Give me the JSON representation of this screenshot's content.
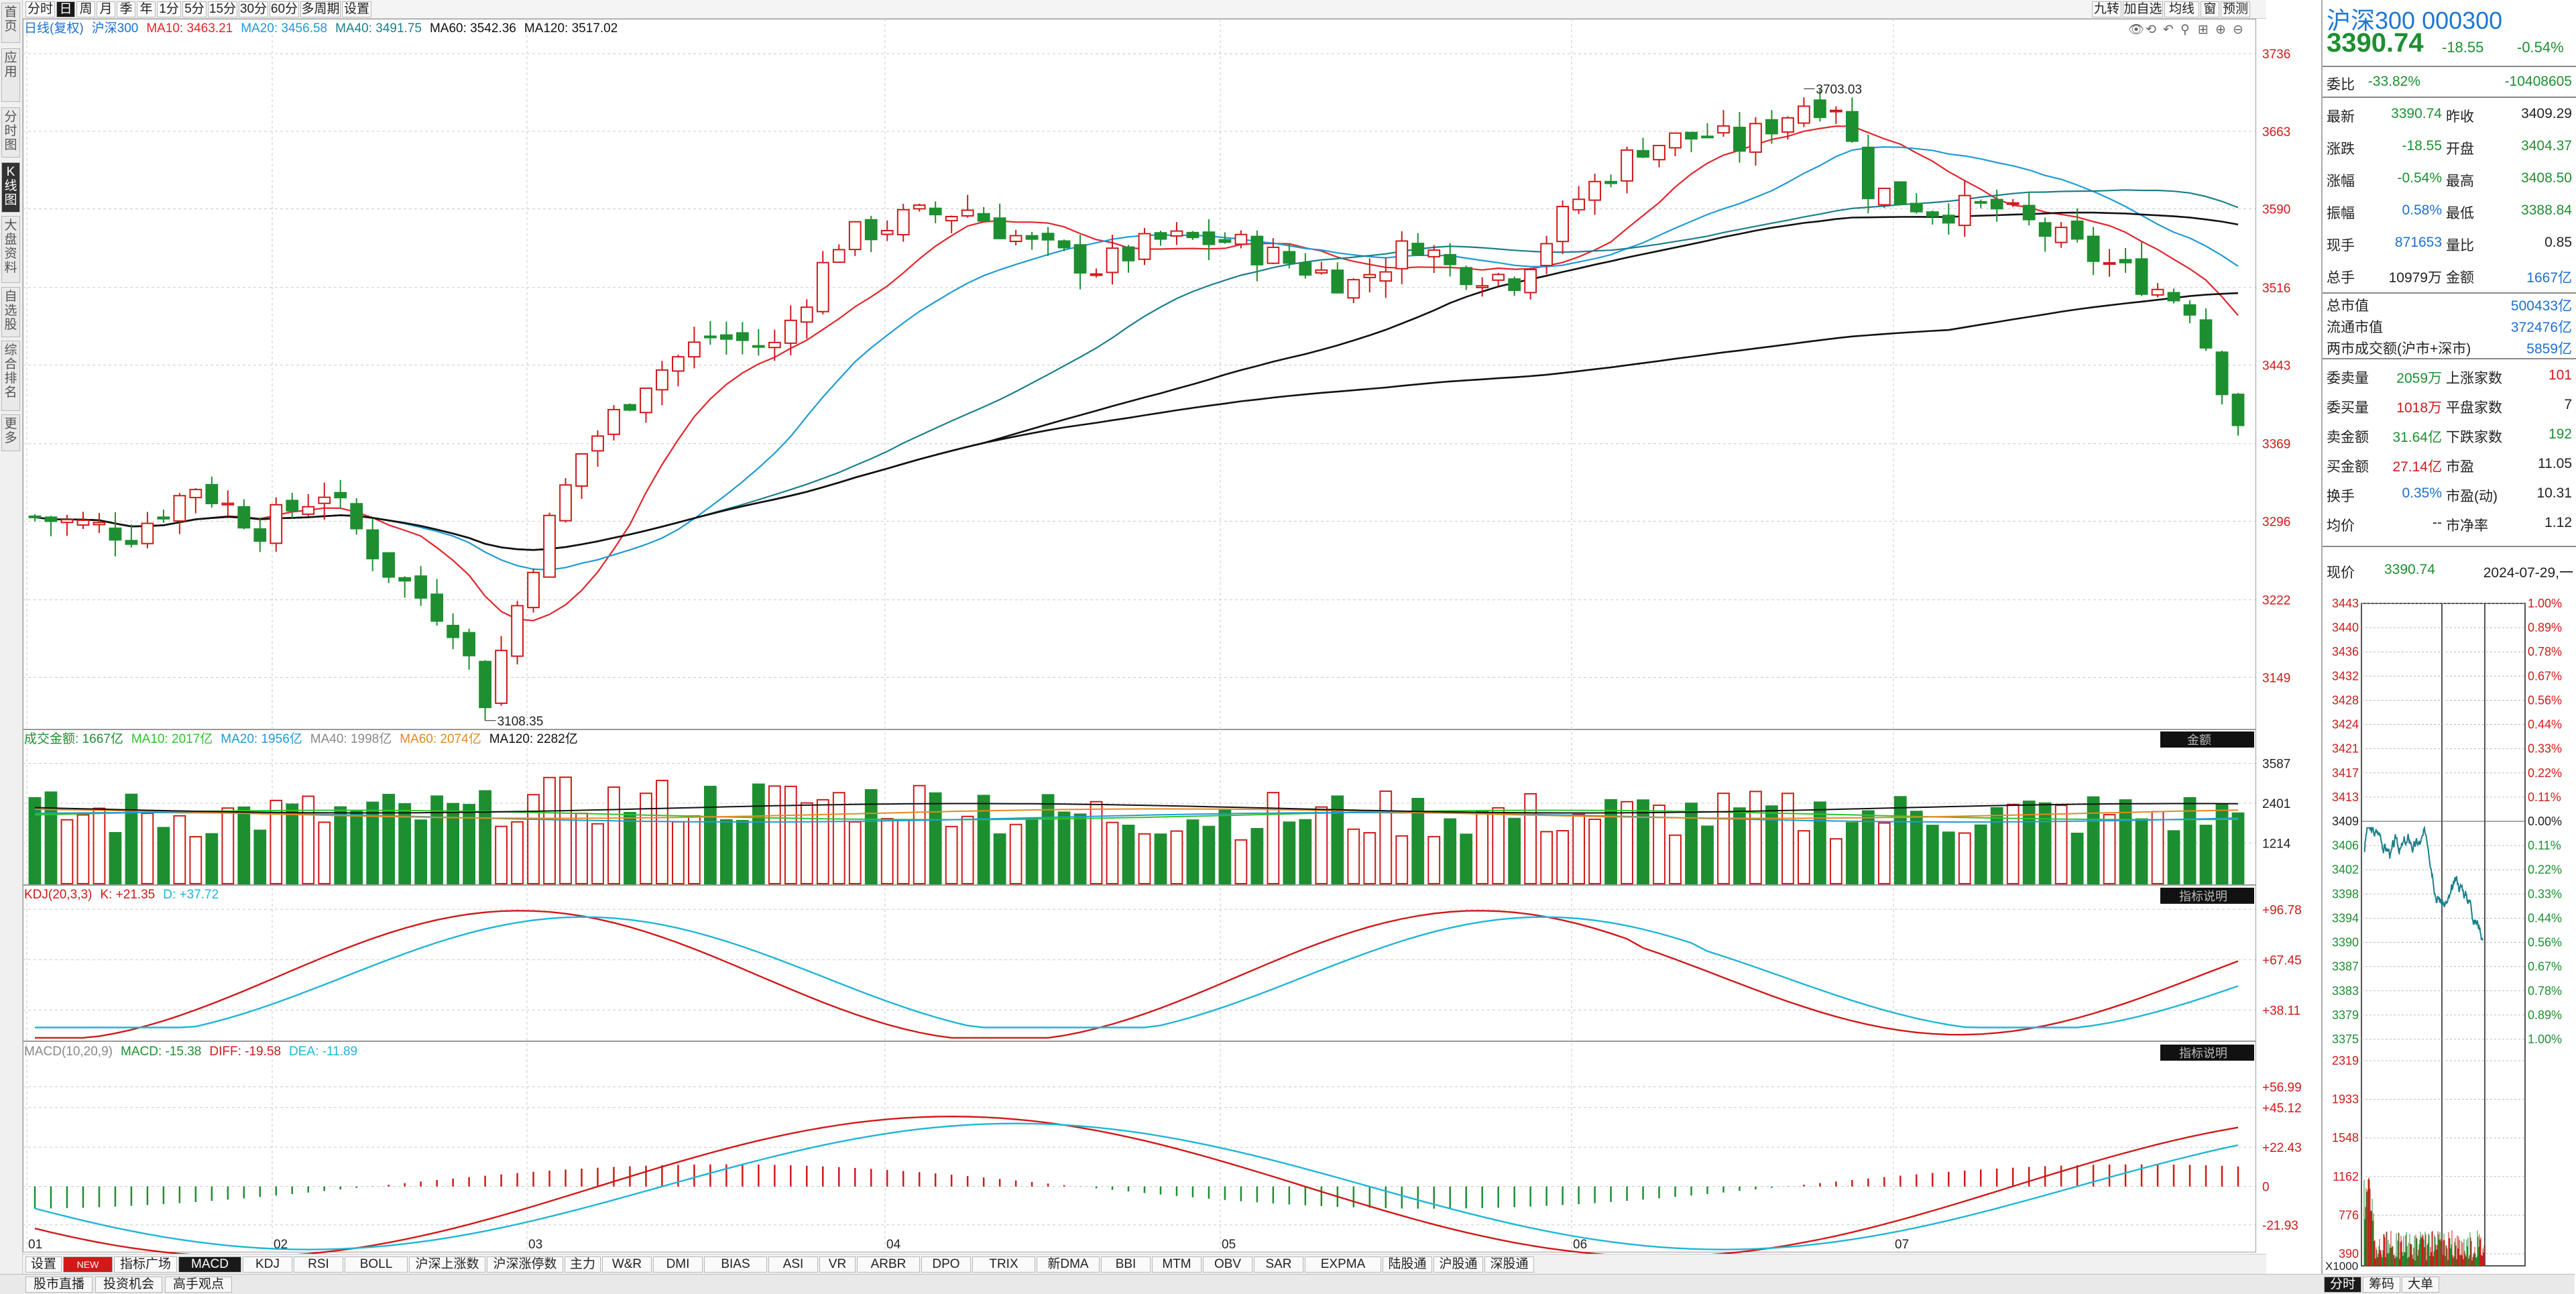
{
  "left_tabs": [
    "首页",
    "应用",
    "分时图",
    "K线图",
    "大盘资料",
    "自选股",
    "综合排名",
    "更多"
  ],
  "toolbar": {
    "items": [
      "分时",
      "日",
      "周",
      "月",
      "季",
      "年",
      "1分",
      "5分",
      "15分",
      "30分",
      "60分",
      "多周期",
      "设置"
    ],
    "right_items": [
      "九转",
      "加自选",
      "均线",
      "窗",
      "预测"
    ],
    "active": "日"
  },
  "price_legend": {
    "prefix": "日线(复权)",
    "name": "沪深300",
    "ma10": "MA10: 3463.21",
    "ma20": "MA20: 3456.58",
    "ma40": "MA40: 3491.75",
    "ma60": "MA60: 3542.36",
    "ma120": "MA120: 3517.02"
  },
  "volume_legend": {
    "label": "成交金额: 1667亿",
    "ma10": "MA10: 2017亿",
    "ma20": "MA20: 1956亿",
    "ma40": "MA40: 1998亿",
    "ma60": "MA60: 2074亿",
    "ma120": "MA120: 2282亿",
    "tag": "金额"
  },
  "kdj_legend": {
    "label": "KDJ(20,3,3)",
    "k": "K: +21.35",
    "d": "D: +37.72",
    "tag": "指标说明"
  },
  "macd_legend": {
    "label": "MACD(10,20,9)",
    "macd": "MACD: -15.38",
    "diff": "DIFF: -19.58",
    "dea": "DEA: -11.89",
    "tag": "指标说明"
  },
  "annotations": {
    "high": "3703.03",
    "low": "3108.35"
  },
  "chart_data": {
    "type": "candlestick",
    "price_axis_ticks": [
      "3736",
      "3663",
      "3590",
      "3516",
      "3443",
      "3369",
      "3296",
      "3222",
      "3149"
    ],
    "volume_axis_ticks": [
      "3587",
      "2401",
      "1214"
    ],
    "kdj_axis_ticks": [
      "+96.78",
      "+67.45",
      "+38.11"
    ],
    "macd_axis_ticks": [
      "+56.99",
      "+45.12",
      "+22.43",
      "0",
      "-21.93"
    ],
    "month_labels": [
      "01",
      "02",
      "03",
      "04",
      "05",
      "06",
      "07"
    ],
    "high_value": 3703.03,
    "low_value": 3108.35,
    "last_close": 3390.74
  },
  "bottom_tabs": [
    "设置",
    "NEW",
    "指标广场",
    "MACD",
    "KDJ",
    "RSI",
    "BOLL",
    "沪深上涨数",
    "沪深涨停数",
    "主力",
    "W&R",
    "DMI",
    "BIAS",
    "ASI",
    "VR",
    "ARBR",
    "DPO",
    "TRIX",
    "新DMA",
    "BBI",
    "MTM",
    "OBV",
    "SAR",
    "EXPMA",
    "陆股通",
    "沪股通",
    "深股通"
  ],
  "bottom_active": "MACD",
  "status_tabs": [
    "股市直播",
    "投资机会",
    "高手观点"
  ],
  "right_panel": {
    "title": "沪深300 000300",
    "price": "3390.74",
    "change": "-18.55",
    "pct": "-0.54%",
    "weibi": {
      "label": "委比",
      "v1": "-33.82%",
      "v2": "-10408605"
    },
    "rows": [
      {
        "l1": "最新",
        "v1": "3390.74",
        "c1": "green",
        "l2": "昨收",
        "v2": "3409.29",
        "c2": "dark"
      },
      {
        "l1": "涨跌",
        "v1": "-18.55",
        "c1": "green",
        "l2": "开盘",
        "v2": "3404.37",
        "c2": "green"
      },
      {
        "l1": "涨幅",
        "v1": "-0.54%",
        "c1": "green",
        "l2": "最高",
        "v2": "3408.50",
        "c2": "green"
      },
      {
        "l1": "振幅",
        "v1": "0.58%",
        "c1": "blue",
        "l2": "最低",
        "v2": "3388.84",
        "c2": "green"
      },
      {
        "l1": "现手",
        "v1": "871653",
        "c1": "blue",
        "l2": "量比",
        "v2": "0.85",
        "c2": "dark"
      },
      {
        "l1": "总手",
        "v1": "10979万",
        "c1": "dark",
        "l2": "金额",
        "v2": "1667亿",
        "c2": "blue"
      }
    ],
    "market": [
      {
        "l": "总市值",
        "v": "500433亿"
      },
      {
        "l": "流通市值",
        "v": "372476亿"
      },
      {
        "l": "两市成交额(沪市+深市)",
        "v": "5859亿"
      }
    ],
    "rows2": [
      {
        "l1": "委卖量",
        "v1": "2059万",
        "c1": "green",
        "l2": "上涨家数",
        "v2": "101",
        "c2": "red"
      },
      {
        "l1": "委买量",
        "v1": "1018万",
        "c1": "red",
        "l2": "平盘家数",
        "v2": "7",
        "c2": "dark"
      },
      {
        "l1": "卖金额",
        "v1": "31.64亿",
        "c1": "green",
        "l2": "下跌家数",
        "v2": "192",
        "c2": "green"
      },
      {
        "l1": "买金额",
        "v1": "27.14亿",
        "c1": "red",
        "l2": "市盈",
        "v2": "11.05",
        "c2": "dark"
      },
      {
        "l1": "换手",
        "v1": "0.35%",
        "c1": "blue",
        "l2": "市盈(动)",
        "v2": "10.31",
        "c2": "dark"
      },
      {
        "l1": "均价",
        "v1": "--",
        "c1": "dark",
        "l2": "市净率",
        "v2": "1.12",
        "c2": "dark"
      }
    ],
    "now_label": "现价",
    "now_value": "3390.74",
    "now_date": "2024-07-29,一",
    "mini_left_ticks": [
      "3443",
      "3440",
      "3436",
      "3432",
      "3428",
      "3424",
      "3421",
      "3417",
      "3413",
      "3409",
      "3406",
      "3402",
      "3398",
      "3394",
      "3390",
      "3387",
      "3383",
      "3379",
      "3375"
    ],
    "mini_right_ticks": [
      "1.00%",
      "0.89%",
      "0.78%",
      "0.67%",
      "0.56%",
      "0.44%",
      "0.33%",
      "0.22%",
      "0.11%",
      "0.00%",
      "0.11%",
      "0.22%",
      "0.33%",
      "0.44%",
      "0.56%",
      "0.67%",
      "0.78%",
      "0.89%",
      "1.00%"
    ],
    "mini_vol_ticks": [
      "2319",
      "1933",
      "1548",
      "1162",
      "776",
      "390"
    ],
    "mini_vol_unit": "X1000",
    "bottom_tabs": [
      "分时",
      "筹码",
      "大单"
    ]
  },
  "colors": {
    "up": "#d01919",
    "down": "#1d8f30",
    "ma10": "#e3242b",
    "ma20": "#1f9ad6",
    "ma40": "#1a7f8a",
    "ma60": "#111111",
    "ma120": "#111111",
    "grid": "#c9c9c9"
  }
}
